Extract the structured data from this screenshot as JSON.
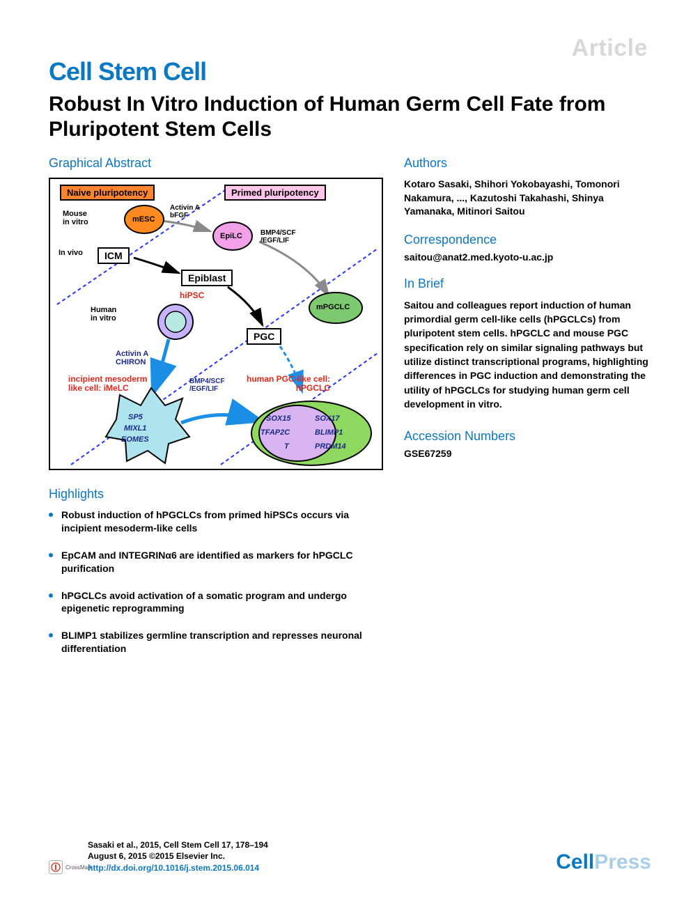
{
  "article_type": "Article",
  "journal": "Cell Stem Cell",
  "title": "Robust In Vitro Induction of Human Germ Cell Fate from Pluripotent Stem Cells",
  "sections": {
    "graphical_abstract": "Graphical Abstract",
    "highlights": "Highlights",
    "authors": "Authors",
    "correspondence": "Correspondence",
    "in_brief": "In Brief",
    "accession": "Accession Numbers"
  },
  "authors_text": "Kotaro Sasaki, Shihori Yokobayashi, Tomonori Nakamura, ..., Kazutoshi Takahashi, Shinya Yamanaka, Mitinori Saitou",
  "correspondence_email": "saitou@anat2.med.kyoto-u.ac.jp",
  "in_brief_text": "Saitou and colleagues report induction of human primordial germ cell-like cells (hPGCLCs) from pluripotent stem cells. hPGCLC and mouse PGC specification rely on similar signaling pathways but utilize distinct transcriptional programs, highlighting differences in PGC induction and demonstrating the utility of hPGCLCs for studying human germ cell development in vitro.",
  "highlights": [
    "Robust induction of hPGCLCs from primed hiPSCs occurs via incipient mesoderm-like cells",
    "EpCAM and INTEGRINα6 are identified as markers for hPGCLC purification",
    "hPGCLCs avoid activation of a somatic program and undergo epigenetic reprogramming",
    "BLIMP1 stabilizes germline transcription and represses neuronal differentiation"
  ],
  "accession_number": "GSE67259",
  "citation": {
    "ref": "Sasaki et al., 2015, Cell Stem Cell 17, 178–194",
    "date": "August 6, 2015 ©2015 Elsevier Inc.",
    "doi": "http://dx.doi.org/10.1016/j.stem.2015.06.014"
  },
  "crossmark": "CrossMark",
  "publisher": {
    "part1": "Cell",
    "part2": "Press"
  },
  "abstract": {
    "boxes": {
      "naive": "Naive pluripotency",
      "primed": "Primed pluripotency",
      "icm": "ICM",
      "epiblast": "Epiblast",
      "pgc": "PGC"
    },
    "labels": {
      "mouse_invitro": "Mouse\nin vitro",
      "invivo": "In vivo",
      "human_invitro": "Human\nin vitro",
      "activin_bfgf": "Activin A\nbFGF",
      "bmp4_1": "BMP4/SCF\n/EGF/LIF",
      "bmp4_2": "BMP4/SCF\n/EGF/LIF",
      "activin_chiron": "Activin A\nCHIRON",
      "hipsc": "hiPSC",
      "mesc": "mESC",
      "epilc": "EpiLC",
      "mpgclc": "mPGCLC",
      "imelc_title": "incipient mesoderm\nlike cell: iMeLC",
      "hpgclc_title": "human PGC-like cell:\nhPGCLC",
      "imelc_genes": [
        "SP5",
        "MIXL1",
        "EOMES"
      ],
      "hpgclc_genes_inner": [
        "SOX15",
        "SOX17",
        "TFAP2C",
        "BLIMP1",
        "T",
        "PRDM14"
      ]
    },
    "colors": {
      "mesc_fill": "#ff8a1f",
      "epilc_fill": "#f2a1e8",
      "mpgclc_fill": "#7dc96f",
      "hipsc_outer": "#c6b2ff",
      "hipsc_inner": "#b8e8e2",
      "imelc_fill": "#aee4ed",
      "hpgclc_outer": "#8fd960",
      "hpgclc_inner": "#d8b5f0",
      "dashed_line": "#2733ff",
      "arrow_blue": "#1b8fe6",
      "arrow_gray": "#8a8a8a",
      "red_text": "#e52618",
      "navy_text": "#1c2a87"
    }
  }
}
